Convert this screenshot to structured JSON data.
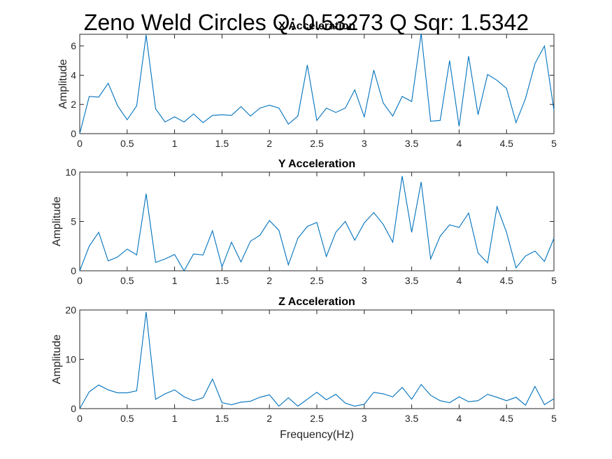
{
  "figure_title": "Zeno Weld Circles    Q: 0.53273    Q Sqr: 1.5342",
  "colors": {
    "series": "#0072BD",
    "axes": "#262626",
    "background": "#ffffff"
  },
  "chart_data": [
    {
      "type": "line",
      "title": "X Acceleration",
      "xlabel": "",
      "ylabel": "Amplitude",
      "xlim": [
        0,
        5
      ],
      "ylim": [
        0,
        6.8
      ],
      "xticks": [
        "0",
        "0.5",
        "1",
        "1.5",
        "2",
        "2.5",
        "3",
        "3.5",
        "4",
        "4.5",
        "5"
      ],
      "yticks": [
        "0",
        "2",
        "4",
        "6"
      ],
      "ytick_values": [
        0,
        2,
        4,
        6
      ],
      "grid": false,
      "series": [
        {
          "x": [
            0,
            0.1,
            0.2,
            0.3,
            0.4,
            0.5,
            0.6,
            0.7,
            0.8,
            0.9,
            1,
            1.1,
            1.2,
            1.3,
            1.4,
            1.5,
            1.6,
            1.7,
            1.8,
            1.9,
            2,
            2.1,
            2.2,
            2.3,
            2.4,
            2.5,
            2.6,
            2.7,
            2.8,
            2.9,
            3,
            3.1,
            3.2,
            3.3,
            3.4,
            3.5,
            3.6,
            3.7,
            3.8,
            3.9,
            4,
            4.1,
            4.2,
            4.3,
            4.4,
            4.5,
            4.6,
            4.7,
            4.8,
            4.9,
            5
          ],
          "y": [
            0,
            2.55,
            2.5,
            3.45,
            1.9,
            0.95,
            1.9,
            6.75,
            1.7,
            0.8,
            1.15,
            0.8,
            1.35,
            0.75,
            1.25,
            1.3,
            1.25,
            1.85,
            1.2,
            1.75,
            1.95,
            1.75,
            0.65,
            1.2,
            4.7,
            0.9,
            1.75,
            1.45,
            1.75,
            3.0,
            1.15,
            4.35,
            2.1,
            1.2,
            2.55,
            2.2,
            6.85,
            0.85,
            0.9,
            5.0,
            0.5,
            5.3,
            1.3,
            4.05,
            3.65,
            3.1,
            0.75,
            2.4,
            4.8,
            6.0,
            1.6
          ]
        }
      ]
    },
    {
      "type": "line",
      "title": "Y Acceleration",
      "xlabel": "",
      "ylabel": "Amplitude",
      "xlim": [
        0,
        5
      ],
      "ylim": [
        0,
        10
      ],
      "xticks": [
        "0",
        "0.5",
        "1",
        "1.5",
        "2",
        "2.5",
        "3",
        "3.5",
        "4",
        "4.5",
        "5"
      ],
      "yticks": [
        "0",
        "5",
        "10"
      ],
      "ytick_values": [
        0,
        5,
        10
      ],
      "grid": false,
      "series": [
        {
          "x": [
            0,
            0.1,
            0.2,
            0.3,
            0.4,
            0.5,
            0.6,
            0.7,
            0.8,
            0.9,
            1,
            1.1,
            1.2,
            1.3,
            1.4,
            1.5,
            1.6,
            1.7,
            1.8,
            1.9,
            2,
            2.1,
            2.2,
            2.3,
            2.4,
            2.5,
            2.6,
            2.7,
            2.8,
            2.9,
            3,
            3.1,
            3.2,
            3.3,
            3.4,
            3.5,
            3.6,
            3.7,
            3.8,
            3.9,
            4,
            4.1,
            4.2,
            4.3,
            4.4,
            4.5,
            4.6,
            4.7,
            4.8,
            4.9,
            5
          ],
          "y": [
            0,
            2.5,
            3.9,
            1.0,
            1.4,
            2.2,
            1.6,
            7.8,
            0.85,
            1.2,
            1.65,
            0,
            1.7,
            1.6,
            4.05,
            0.4,
            2.9,
            0.9,
            3.0,
            3.6,
            5.1,
            4.1,
            0.6,
            3.3,
            4.5,
            4.9,
            1.45,
            3.9,
            5.0,
            3.1,
            4.85,
            5.9,
            4.7,
            2.9,
            9.6,
            3.9,
            9.0,
            1.2,
            3.5,
            4.65,
            4.4,
            5.85,
            1.8,
            0.8,
            6.5,
            3.9,
            0.3,
            1.5,
            2.0,
            0.95,
            3.3
          ]
        }
      ]
    },
    {
      "type": "line",
      "title": "Z Acceleration",
      "xlabel": "Frequency(Hz)",
      "ylabel": "Amplitude",
      "xlim": [
        0,
        5
      ],
      "ylim": [
        0,
        20
      ],
      "xticks": [
        "0",
        "0.5",
        "1",
        "1.5",
        "2",
        "2.5",
        "3",
        "3.5",
        "4",
        "4.5",
        "5"
      ],
      "yticks": [
        "0",
        "10",
        "20"
      ],
      "ytick_values": [
        0,
        10,
        20
      ],
      "grid": false,
      "series": [
        {
          "x": [
            0,
            0.1,
            0.2,
            0.3,
            0.4,
            0.5,
            0.6,
            0.7,
            0.8,
            0.9,
            1,
            1.1,
            1.2,
            1.3,
            1.4,
            1.5,
            1.6,
            1.7,
            1.8,
            1.9,
            2,
            2.1,
            2.2,
            2.3,
            2.4,
            2.5,
            2.6,
            2.7,
            2.8,
            2.9,
            3,
            3.1,
            3.2,
            3.3,
            3.4,
            3.5,
            3.6,
            3.7,
            3.8,
            3.9,
            4,
            4.1,
            4.2,
            4.3,
            4.4,
            4.5,
            4.6,
            4.7,
            4.8,
            4.9,
            5
          ],
          "y": [
            0,
            3.4,
            4.8,
            3.8,
            3.2,
            3.2,
            3.6,
            19.6,
            1.9,
            3.0,
            3.8,
            2.4,
            1.6,
            2.2,
            6.0,
            1.2,
            0.8,
            1.3,
            1.5,
            2.3,
            2.8,
            0.5,
            2.2,
            0.5,
            1.9,
            3.3,
            1.8,
            2.9,
            1.1,
            0.5,
            0.9,
            3.3,
            3.0,
            2.4,
            4.3,
            1.9,
            4.9,
            2.7,
            1.6,
            1.2,
            2.4,
            1.4,
            1.6,
            2.9,
            2.3,
            1.6,
            2.3,
            0.7,
            4.5,
            0.8,
            2.0
          ]
        }
      ]
    }
  ]
}
